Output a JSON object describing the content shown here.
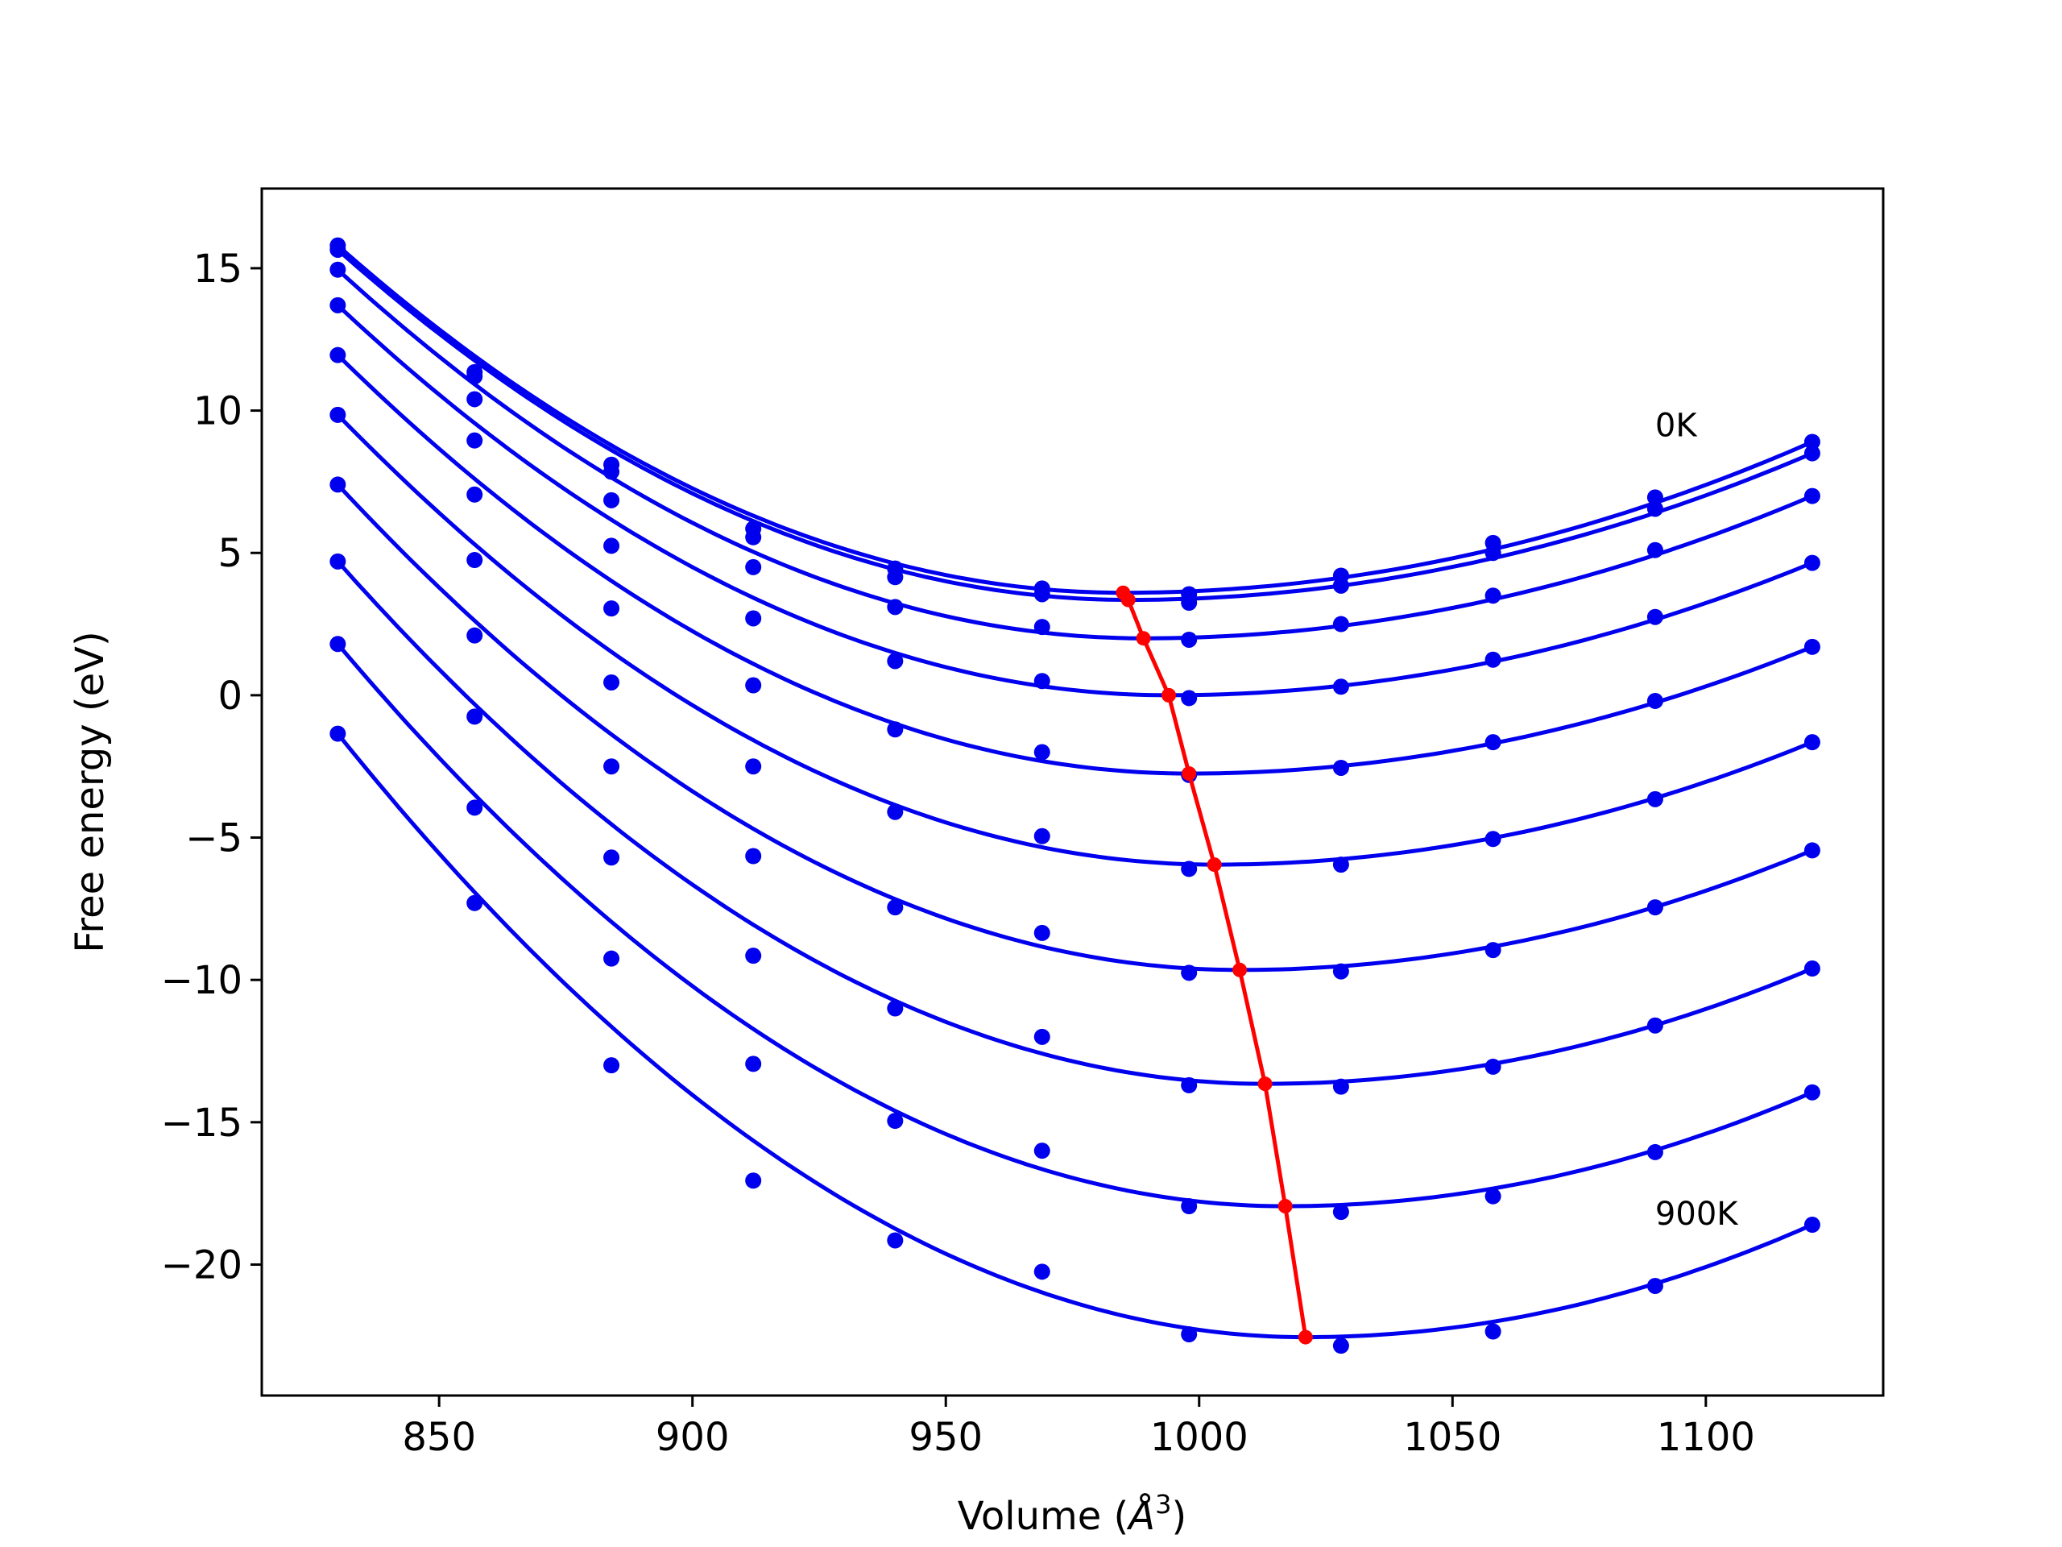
{
  "chart_data": {
    "type": "line",
    "xlabel": "Volume (",
    "xlabel_unit": "Å",
    "xlabel_exp": "3",
    "xlabel_close": ")",
    "ylabel": "Free energy (eV)",
    "xlim": [
      815,
      1135
    ],
    "ylim": [
      -24.6,
      17.8
    ],
    "xticks": [
      850,
      900,
      950,
      1000,
      1050,
      1100
    ],
    "yticks": [
      15,
      10,
      5,
      0,
      -5,
      -10,
      -15,
      -20
    ],
    "ytick_labels": [
      "15",
      "10",
      "5",
      "0",
      "−5",
      "−10",
      "−15",
      "−20"
    ],
    "grid": false,
    "legend": "none",
    "annotations": [
      {
        "text": "0K",
        "x": 1090,
        "y": 9.1
      },
      {
        "text": "900K",
        "x": 1090,
        "y": -18.6
      }
    ],
    "volumes": [
      830,
      857,
      884,
      912,
      940,
      969,
      998,
      1028,
      1058,
      1090,
      1121
    ],
    "series": [
      {
        "values": [
          15.8,
          11.35,
          8.1,
          5.85,
          4.45,
          3.75,
          3.55,
          4.2,
          5.35,
          6.95,
          8.9
        ],
        "minimum": [
          985,
          3.6
        ]
      },
      {
        "values": [
          15.65,
          11.2,
          7.85,
          5.55,
          4.15,
          3.55,
          3.25,
          3.85,
          5.0,
          6.55,
          8.5
        ],
        "minimum": [
          986,
          3.35
        ]
      },
      {
        "values": [
          14.95,
          10.4,
          6.85,
          4.5,
          3.1,
          2.4,
          1.95,
          2.5,
          3.5,
          5.1,
          7.0
        ],
        "minimum": [
          989,
          2.0
        ]
      },
      {
        "values": [
          13.7,
          8.95,
          5.25,
          2.7,
          1.2,
          0.5,
          -0.1,
          0.3,
          1.25,
          2.75,
          4.65
        ],
        "minimum": [
          994,
          0.0
        ]
      },
      {
        "values": [
          11.95,
          7.05,
          3.05,
          0.35,
          -1.2,
          -2.0,
          -2.8,
          -2.55,
          -1.65,
          -0.2,
          1.7
        ],
        "minimum": [
          998,
          -2.75
        ]
      },
      {
        "values": [
          9.85,
          4.75,
          0.45,
          -2.5,
          -4.1,
          -4.95,
          -6.1,
          -5.95,
          -5.05,
          -3.65,
          -1.65
        ],
        "minimum": [
          1003,
          -5.95
        ]
      },
      {
        "values": [
          7.4,
          2.1,
          -2.5,
          -5.65,
          -7.45,
          -8.35,
          -9.75,
          -9.7,
          -8.95,
          -7.45,
          -5.45
        ],
        "minimum": [
          1008,
          -9.65
        ]
      },
      {
        "values": [
          4.7,
          -0.75,
          -5.7,
          -9.15,
          -11.0,
          -12.0,
          -13.7,
          -13.75,
          -13.05,
          -11.6,
          -9.6
        ],
        "minimum": [
          1013,
          -13.65
        ]
      },
      {
        "values": [
          1.8,
          -3.95,
          -9.25,
          -12.95,
          -14.95,
          -16.0,
          -17.95,
          -18.15,
          -17.6,
          -16.05,
          -13.95
        ],
        "minimum": [
          1017,
          -17.95
        ]
      },
      {
        "values": [
          -1.35,
          -7.3,
          -13.0,
          -17.05,
          -19.15,
          -20.25,
          -22.45,
          -22.85,
          -22.35,
          -20.75,
          -18.6
        ],
        "minimum": [
          1021,
          -22.55
        ]
      }
    ],
    "series_color": "#0000ee",
    "minimum_line_color": "#ff0000"
  }
}
